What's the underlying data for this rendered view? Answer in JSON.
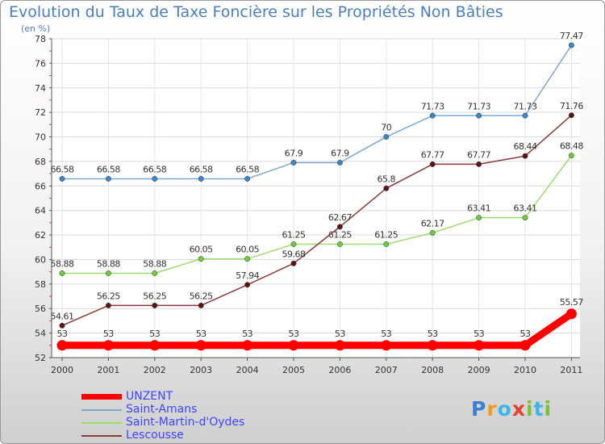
{
  "title": "Evolution du Taux de Taxe Foncière sur les Propriétés Non Bâties",
  "unit_label": "(en %)",
  "logo": {
    "text": "Proxiti",
    "letters": [
      "P",
      "r",
      "o",
      "x",
      "i",
      "t",
      "i"
    ],
    "colors": [
      "#3a7fd0",
      "#f39a1e",
      "#3bb6e8",
      "#e8402a",
      "#7dbf3c",
      "#3bb6e8",
      "#7dbf3c"
    ]
  },
  "chart_data": {
    "type": "line",
    "categories": [
      "2000",
      "2001",
      "2002",
      "2003",
      "2004",
      "2005",
      "2006",
      "2007",
      "2008",
      "2009",
      "2010",
      "2011"
    ],
    "ylim": [
      52,
      78
    ],
    "yticks": [
      "52",
      "54",
      "56",
      "58",
      "60",
      "62",
      "64",
      "66",
      "68",
      "70",
      "72",
      "74",
      "76",
      "78"
    ],
    "grid": true,
    "legend_position": "bottom-left",
    "series": [
      {
        "name": "UNZENT",
        "color": "#ff0000",
        "values": [
          53,
          53,
          53,
          53,
          53,
          53,
          53,
          53,
          53,
          53,
          53,
          55.57
        ],
        "labels": [
          "53",
          "53",
          "53",
          "53",
          "53",
          "53",
          "53",
          "53",
          "53",
          "53",
          "53",
          "55.57"
        ]
      },
      {
        "name": "Saint-Amans",
        "color": "#7fa8d0",
        "marker_color": "#3a86c8",
        "values": [
          66.58,
          66.58,
          66.58,
          66.58,
          66.58,
          67.9,
          67.9,
          70,
          71.73,
          71.73,
          71.73,
          77.47
        ],
        "labels": [
          "66.58",
          "66.58",
          "66.58",
          "66.58",
          "66.58",
          "67.9",
          "67.9",
          "70",
          "71.73",
          "71.73",
          "71.73",
          "77.47"
        ]
      },
      {
        "name": "Saint-Martin-d'Oydes",
        "color": "#9fdc6f",
        "marker_color": "#6dcc3e",
        "values": [
          58.88,
          58.88,
          58.88,
          60.05,
          60.05,
          61.25,
          61.25,
          61.25,
          62.17,
          63.41,
          63.41,
          68.48
        ],
        "labels": [
          "58.88",
          "58.88",
          "58.88",
          "60.05",
          "60.05",
          "61.25",
          "61.25",
          "61.25",
          "62.17",
          "63.41",
          "63.41",
          "68.48"
        ]
      },
      {
        "name": "Lescousse",
        "color": "#8a3a3a",
        "marker_color": "#5a1414",
        "values": [
          54.61,
          56.25,
          56.25,
          56.25,
          57.94,
          59.68,
          62.67,
          65.8,
          67.77,
          67.77,
          68.44,
          71.76
        ],
        "labels": [
          "54.61",
          "56.25",
          "56.25",
          "56.25",
          "57.94",
          "59.68",
          "62.67",
          "65.8",
          "67.77",
          "67.77",
          "68.44",
          "71.76"
        ]
      }
    ]
  }
}
